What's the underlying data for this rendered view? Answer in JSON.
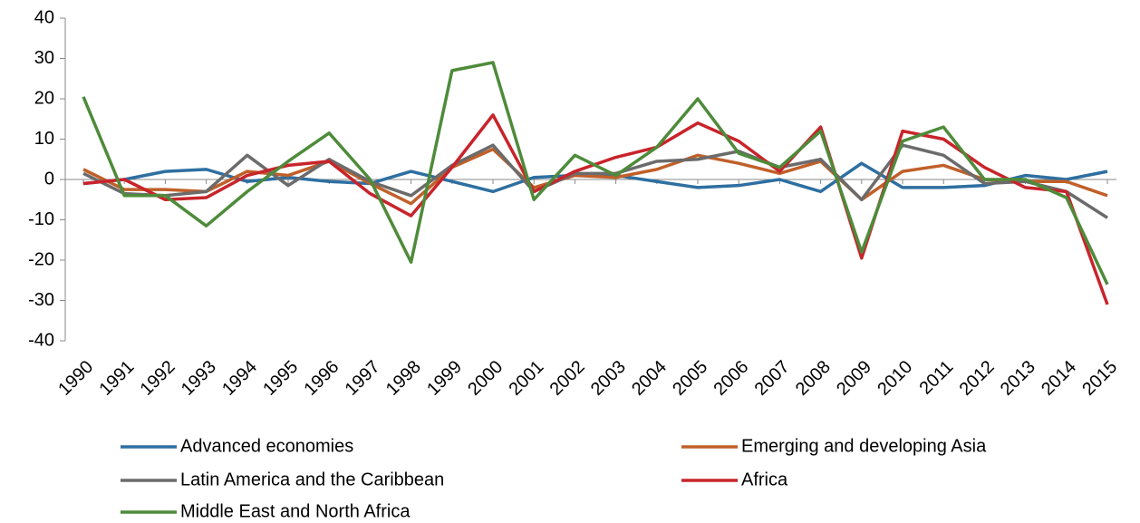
{
  "chart_data": {
    "type": "line",
    "x": [
      "1990",
      "1991",
      "1992",
      "1993",
      "1994",
      "1995",
      "1996",
      "1997",
      "1998",
      "1999",
      "2000",
      "2001",
      "2002",
      "2003",
      "2004",
      "2005",
      "2006",
      "2007",
      "2008",
      "2009",
      "2010",
      "2011",
      "2012",
      "2013",
      "2014",
      "2015"
    ],
    "series": [
      {
        "name": "Advanced economies",
        "color": "#2e6fa1",
        "values": [
          -1,
          0,
          2,
          2.5,
          -0.5,
          0.5,
          -0.5,
          -1,
          2,
          -0.5,
          -3,
          0.5,
          1,
          1,
          -0.5,
          -2,
          -1.5,
          0,
          -3,
          4,
          -2,
          -2,
          -1.5,
          1,
          0,
          2
        ]
      },
      {
        "name": "Emerging and developing Asia",
        "color": "#c0602a",
        "values": [
          2.5,
          -2.5,
          -2.5,
          -3,
          2,
          1,
          4.5,
          -1,
          -6,
          3,
          7.5,
          -2,
          1,
          0.5,
          2.5,
          6,
          4,
          1.5,
          4.5,
          -5,
          2,
          3.5,
          0,
          -0.5,
          -0.5,
          -4
        ]
      },
      {
        "name": "Latin America and the Caribbean",
        "color": "#6b6b6b",
        "values": [
          1.5,
          -3.5,
          -4,
          -3,
          6,
          -1.5,
          5,
          -0.5,
          -4,
          3.5,
          8.5,
          -3,
          1.5,
          1.5,
          4.5,
          5,
          7,
          3,
          5,
          -5,
          8.5,
          6,
          -1,
          -0.5,
          -3,
          -9.5
        ]
      },
      {
        "name": "Africa",
        "color": "#c8242b",
        "values": [
          -1,
          0,
          -5,
          -4.5,
          1,
          3.5,
          4.5,
          -3.5,
          -9,
          3,
          16,
          -3,
          2,
          5.5,
          8,
          14,
          9.5,
          2,
          13,
          -19.5,
          12,
          10,
          3,
          -2,
          -3,
          -31
        ]
      },
      {
        "name": "Middle East and North Africa",
        "color": "#4e8b3a",
        "values": [
          20.5,
          -4,
          -4,
          -11.5,
          -3,
          4.5,
          11.5,
          0,
          -20.5,
          27,
          29,
          -5,
          6,
          1,
          8,
          20,
          6.5,
          3,
          12,
          -18,
          9.5,
          13,
          0,
          0,
          -4.5,
          -26
        ]
      }
    ],
    "ylim": [
      -40,
      40
    ],
    "yticks": [
      -40,
      -30,
      -20,
      -10,
      0,
      10,
      20,
      30,
      40
    ],
    "grid": false
  }
}
